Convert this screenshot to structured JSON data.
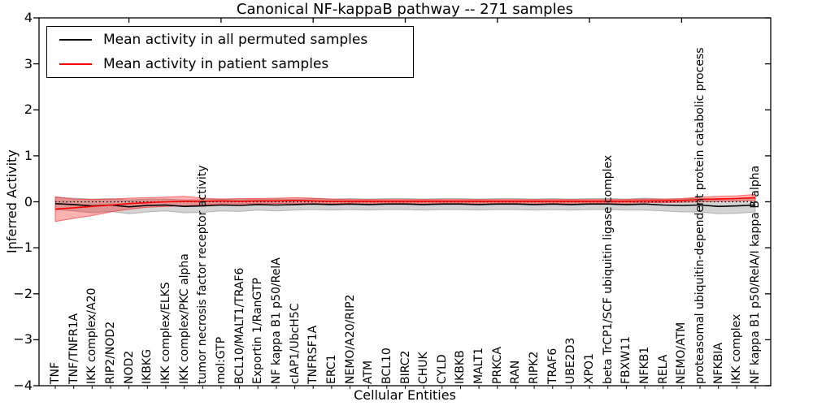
{
  "chart_data": {
    "type": "line",
    "title": "Canonical NF-kappaB pathway -- 271 samples",
    "xlabel": "Cellular Entities",
    "ylabel": "Inferred Activity",
    "ylim": [
      -4,
      4
    ],
    "yticks": [
      4,
      3,
      2,
      1,
      0,
      -1,
      -2,
      -3,
      -4
    ],
    "ytick_labels": [
      "4",
      "3",
      "2",
      "1",
      "0",
      "−1",
      "−2",
      "−3",
      "−4"
    ],
    "grid": false,
    "legend_position": "upper left",
    "zero_line": {
      "y": 0,
      "style": "dotted",
      "color": "#000000"
    },
    "categories": [
      "TNF",
      "TNF/TNFR1A",
      "IKK complex/A20",
      "RIP2/NOD2",
      "NOD2",
      "IKBKG",
      "IKK complex/ELKS",
      "IKK complex/PKC alpha",
      "tumor necrosis factor receptor activity",
      "mol:GTP",
      "BCL10/MALT1/TRAF6",
      "Exportin 1/RanGTP",
      "NF kappa B1 p50/RelA",
      "cIAP1/UbcH5C",
      "TNFRSF1A",
      "ERC1",
      "NEMO/A20/RIP2",
      "ATM",
      "BCL10",
      "BIRC2",
      "CHUK",
      "CYLD",
      "IKBKB",
      "MALT1",
      "PRKCA",
      "RAN",
      "RIPK2",
      "TRAF6",
      "UBE2D3",
      "XPO1",
      "beta TrCP1/SCF ubiquitin ligase complex",
      "FBXW11",
      "NFKB1",
      "RELA",
      "NEMO/ATM",
      "proteasomal ubiquitin-dependent protein catabolic process",
      "NFKBIA",
      "IKK complex",
      "NF kappa B1 p50/RelA/I kappa B alpha"
    ],
    "series": [
      {
        "name": "Mean activity in all permuted samples",
        "color": "#000000",
        "band_color": "#808080",
        "band_opacity": 0.35,
        "values": [
          -0.04,
          -0.06,
          -0.09,
          -0.07,
          -0.11,
          -0.08,
          -0.07,
          -0.1,
          -0.09,
          -0.07,
          -0.08,
          -0.06,
          -0.07,
          -0.06,
          -0.05,
          -0.06,
          -0.05,
          -0.06,
          -0.05,
          -0.05,
          -0.06,
          -0.05,
          -0.05,
          -0.06,
          -0.05,
          -0.05,
          -0.06,
          -0.05,
          -0.06,
          -0.05,
          -0.05,
          -0.06,
          -0.05,
          -0.07,
          -0.08,
          -0.07,
          -0.1,
          -0.09,
          -0.07
        ],
        "band_hi": [
          0.09,
          0.08,
          0.06,
          0.07,
          0.04,
          0.06,
          0.06,
          0.04,
          0.05,
          0.06,
          0.05,
          0.06,
          0.06,
          0.06,
          0.07,
          0.06,
          0.07,
          0.06,
          0.07,
          0.07,
          0.06,
          0.07,
          0.07,
          0.06,
          0.07,
          0.07,
          0.06,
          0.07,
          0.06,
          0.07,
          0.07,
          0.06,
          0.08,
          0.06,
          0.06,
          0.08,
          0.06,
          0.07,
          0.08
        ],
        "band_lo": [
          -0.17,
          -0.2,
          -0.24,
          -0.21,
          -0.26,
          -0.22,
          -0.2,
          -0.24,
          -0.23,
          -0.2,
          -0.21,
          -0.18,
          -0.2,
          -0.18,
          -0.17,
          -0.18,
          -0.17,
          -0.18,
          -0.17,
          -0.17,
          -0.18,
          -0.17,
          -0.17,
          -0.18,
          -0.17,
          -0.17,
          -0.18,
          -0.17,
          -0.18,
          -0.17,
          -0.17,
          -0.18,
          -0.18,
          -0.2,
          -0.22,
          -0.22,
          -0.26,
          -0.25,
          -0.22
        ]
      },
      {
        "name": "Mean activity in patient samples",
        "color": "#ff0000",
        "band_color": "#ff0000",
        "band_opacity": 0.3,
        "values": [
          -0.16,
          -0.13,
          -0.1,
          -0.07,
          -0.04,
          -0.02,
          0.0,
          0.01,
          0.01,
          0.02,
          0.01,
          0.02,
          0.02,
          0.03,
          0.02,
          0.01,
          0.01,
          0.01,
          0.01,
          0.01,
          0.01,
          0.01,
          0.01,
          0.01,
          0.01,
          0.01,
          0.01,
          0.01,
          0.01,
          0.01,
          0.01,
          0.01,
          0.02,
          0.02,
          0.03,
          0.05,
          0.06,
          0.07,
          0.09
        ],
        "band_hi": [
          0.11,
          0.06,
          0.05,
          0.06,
          0.08,
          0.09,
          0.1,
          0.12,
          0.08,
          0.06,
          0.07,
          0.07,
          0.08,
          0.09,
          0.08,
          0.06,
          0.05,
          0.05,
          0.05,
          0.05,
          0.05,
          0.05,
          0.05,
          0.05,
          0.05,
          0.05,
          0.05,
          0.05,
          0.05,
          0.05,
          0.05,
          0.05,
          0.06,
          0.06,
          0.07,
          0.1,
          0.12,
          0.13,
          0.16
        ],
        "band_lo": [
          -0.43,
          -0.36,
          -0.3,
          -0.22,
          -0.16,
          -0.12,
          -0.1,
          -0.09,
          -0.07,
          -0.05,
          -0.05,
          -0.04,
          -0.04,
          -0.03,
          -0.04,
          -0.04,
          -0.03,
          -0.03,
          -0.03,
          -0.03,
          -0.03,
          -0.03,
          -0.03,
          -0.03,
          -0.03,
          -0.03,
          -0.03,
          -0.03,
          -0.03,
          -0.03,
          -0.03,
          -0.03,
          -0.02,
          -0.02,
          -0.01,
          0.0,
          0.01,
          0.02,
          0.03
        ]
      }
    ]
  }
}
